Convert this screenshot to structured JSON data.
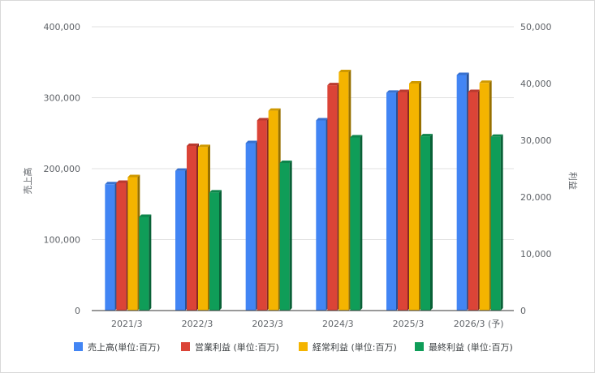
{
  "chart_data": {
    "type": "bar",
    "title": "",
    "categories": [
      "2021/3",
      "2022/3",
      "2023/3",
      "2024/3",
      "2025/3",
      "2026/3 (予)"
    ],
    "ylabel_left": "売上高",
    "ylabel_right": "利益",
    "ylim_left": [
      0,
      400000
    ],
    "ylim_right": [
      0,
      50000
    ],
    "yticks_left": [
      "0",
      "100,000",
      "200,000",
      "300,000",
      "400,000"
    ],
    "yticks_right": [
      "0",
      "10,000",
      "20,000",
      "30,000",
      "40,000",
      "50,000"
    ],
    "grid": true,
    "legend_position": "bottom",
    "series": [
      {
        "name": "売上高(単位:百万)",
        "axis": "left",
        "color": "#4285f4",
        "values": [
          178000,
          197000,
          236000,
          268000,
          307000,
          332000
        ]
      },
      {
        "name": "営業利益 (単位:百万)",
        "axis": "right",
        "color": "#db4437",
        "values": [
          22500,
          29000,
          33500,
          39700,
          38500,
          38500
        ]
      },
      {
        "name": "経常利益 (単位:百万)",
        "axis": "right",
        "color": "#f4b400",
        "values": [
          23500,
          28800,
          35200,
          42000,
          40000,
          40100
        ]
      },
      {
        "name": "最終利益 (単位:百万)",
        "axis": "right",
        "color": "#0f9d58",
        "values": [
          16500,
          20800,
          26000,
          30500,
          30700,
          30600
        ]
      }
    ]
  }
}
